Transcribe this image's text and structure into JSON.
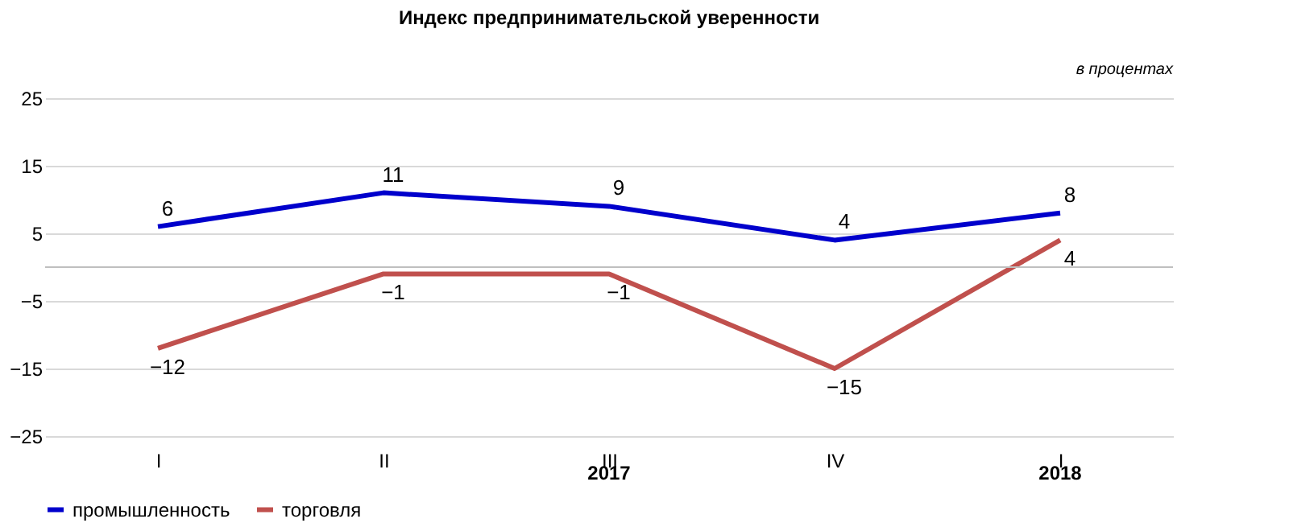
{
  "chart_data": {
    "type": "line",
    "title": "Индекс предпринимательской  уверенности",
    "categories": [
      "I",
      "II",
      "III",
      "IV",
      "I"
    ],
    "series": [
      {
        "name": "промышленность",
        "color": "#0000cc",
        "values": [
          6,
          11,
          9,
          4,
          8
        ]
      },
      {
        "name": "торговля",
        "color": "#c0504d",
        "values": [
          -12,
          -1,
          -1,
          -15,
          4
        ]
      }
    ],
    "ylim": [
      -25,
      25
    ],
    "yticks": [
      -25,
      -15,
      -5,
      5,
      15,
      25
    ],
    "grid": "y",
    "ref_lines": [
      {
        "axis": "y",
        "value": 0
      }
    ],
    "data_labels": true,
    "legend": "bottom",
    "marker": "none",
    "line_style": "solid",
    "annotations": [
      "в процентах",
      "2017",
      "2018"
    ]
  }
}
